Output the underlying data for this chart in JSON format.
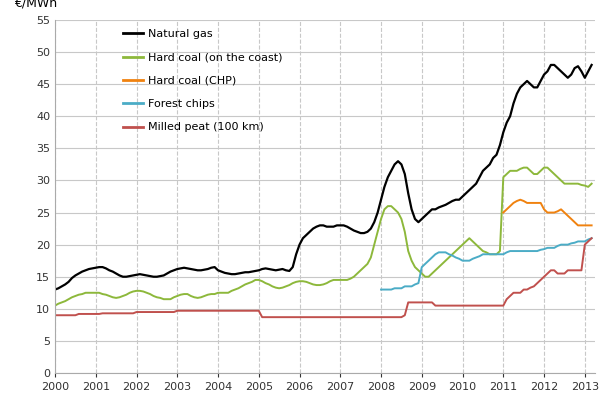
{
  "ylabel": "€/MWh",
  "ylim": [
    0,
    55
  ],
  "yticks": [
    0,
    5,
    10,
    15,
    20,
    25,
    30,
    35,
    40,
    45,
    50,
    55
  ],
  "xlim_start": 2000.0,
  "xlim_end": 2013.25,
  "xtick_labels": [
    "2000",
    "2001",
    "2002",
    "2003",
    "2004",
    "2005",
    "2006",
    "2007",
    "2008",
    "2009",
    "2010",
    "2011",
    "2012",
    "2013"
  ],
  "background_color": "#ffffff",
  "grid_color": "#c8c8c8",
  "series": [
    {
      "label": "Natural gas",
      "color": "#000000",
      "linewidth": 1.6,
      "data_x": [
        2000.0,
        2000.083,
        2000.167,
        2000.25,
        2000.333,
        2000.417,
        2000.5,
        2000.583,
        2000.667,
        2000.75,
        2000.833,
        2000.917,
        2001.0,
        2001.083,
        2001.167,
        2001.25,
        2001.333,
        2001.417,
        2001.5,
        2001.583,
        2001.667,
        2001.75,
        2001.833,
        2001.917,
        2002.0,
        2002.083,
        2002.167,
        2002.25,
        2002.333,
        2002.417,
        2002.5,
        2002.583,
        2002.667,
        2002.75,
        2002.833,
        2002.917,
        2003.0,
        2003.083,
        2003.167,
        2003.25,
        2003.333,
        2003.417,
        2003.5,
        2003.583,
        2003.667,
        2003.75,
        2003.833,
        2003.917,
        2004.0,
        2004.083,
        2004.167,
        2004.25,
        2004.333,
        2004.417,
        2004.5,
        2004.583,
        2004.667,
        2004.75,
        2004.833,
        2004.917,
        2005.0,
        2005.083,
        2005.167,
        2005.25,
        2005.333,
        2005.417,
        2005.5,
        2005.583,
        2005.667,
        2005.75,
        2005.833,
        2005.917,
        2006.0,
        2006.083,
        2006.167,
        2006.25,
        2006.333,
        2006.417,
        2006.5,
        2006.583,
        2006.667,
        2006.75,
        2006.833,
        2006.917,
        2007.0,
        2007.083,
        2007.167,
        2007.25,
        2007.333,
        2007.417,
        2007.5,
        2007.583,
        2007.667,
        2007.75,
        2007.833,
        2007.917,
        2008.0,
        2008.083,
        2008.167,
        2008.25,
        2008.333,
        2008.417,
        2008.5,
        2008.583,
        2008.667,
        2008.75,
        2008.833,
        2008.917,
        2009.0,
        2009.083,
        2009.167,
        2009.25,
        2009.333,
        2009.417,
        2009.5,
        2009.583,
        2009.667,
        2009.75,
        2009.833,
        2009.917,
        2010.0,
        2010.083,
        2010.167,
        2010.25,
        2010.333,
        2010.417,
        2010.5,
        2010.583,
        2010.667,
        2010.75,
        2010.833,
        2010.917,
        2011.0,
        2011.083,
        2011.167,
        2011.25,
        2011.333,
        2011.417,
        2011.5,
        2011.583,
        2011.667,
        2011.75,
        2011.833,
        2011.917,
        2012.0,
        2012.083,
        2012.167,
        2012.25,
        2012.333,
        2012.417,
        2012.5,
        2012.583,
        2012.667,
        2012.75,
        2012.833,
        2012.917,
        2013.0,
        2013.083,
        2013.167
      ],
      "data_y": [
        13.0,
        13.2,
        13.5,
        13.8,
        14.2,
        14.8,
        15.2,
        15.5,
        15.8,
        16.0,
        16.2,
        16.3,
        16.4,
        16.5,
        16.5,
        16.3,
        16.0,
        15.8,
        15.5,
        15.2,
        15.0,
        15.0,
        15.1,
        15.2,
        15.3,
        15.4,
        15.3,
        15.2,
        15.1,
        15.0,
        15.0,
        15.1,
        15.2,
        15.5,
        15.8,
        16.0,
        16.2,
        16.3,
        16.4,
        16.3,
        16.2,
        16.1,
        16.0,
        16.0,
        16.1,
        16.2,
        16.4,
        16.5,
        16.0,
        15.8,
        15.6,
        15.5,
        15.4,
        15.4,
        15.5,
        15.6,
        15.7,
        15.7,
        15.8,
        15.9,
        16.0,
        16.2,
        16.3,
        16.2,
        16.1,
        16.0,
        16.1,
        16.2,
        16.0,
        15.9,
        16.5,
        18.5,
        20.0,
        21.0,
        21.5,
        22.0,
        22.5,
        22.8,
        23.0,
        23.0,
        22.8,
        22.8,
        22.8,
        23.0,
        23.0,
        23.0,
        22.8,
        22.5,
        22.2,
        22.0,
        21.8,
        21.8,
        22.0,
        22.5,
        23.5,
        25.0,
        27.0,
        29.0,
        30.5,
        31.5,
        32.5,
        33.0,
        32.5,
        31.0,
        28.0,
        25.5,
        24.0,
        23.5,
        24.0,
        24.5,
        25.0,
        25.5,
        25.5,
        25.8,
        26.0,
        26.2,
        26.5,
        26.8,
        27.0,
        27.0,
        27.5,
        28.0,
        28.5,
        29.0,
        29.5,
        30.5,
        31.5,
        32.0,
        32.5,
        33.5,
        34.0,
        35.5,
        37.5,
        39.0,
        40.0,
        42.0,
        43.5,
        44.5,
        45.0,
        45.5,
        45.0,
        44.5,
        44.5,
        45.5,
        46.5,
        47.0,
        48.0,
        48.0,
        47.5,
        47.0,
        46.5,
        46.0,
        46.5,
        47.5,
        47.8,
        47.0,
        46.0,
        47.0,
        48.0
      ]
    },
    {
      "label": "Hard coal (on the coast)",
      "color": "#8db83b",
      "linewidth": 1.4,
      "data_x": [
        2000.0,
        2000.083,
        2000.167,
        2000.25,
        2000.333,
        2000.417,
        2000.5,
        2000.583,
        2000.667,
        2000.75,
        2000.833,
        2000.917,
        2001.0,
        2001.083,
        2001.167,
        2001.25,
        2001.333,
        2001.417,
        2001.5,
        2001.583,
        2001.667,
        2001.75,
        2001.833,
        2001.917,
        2002.0,
        2002.083,
        2002.167,
        2002.25,
        2002.333,
        2002.417,
        2002.5,
        2002.583,
        2002.667,
        2002.75,
        2002.833,
        2002.917,
        2003.0,
        2003.083,
        2003.167,
        2003.25,
        2003.333,
        2003.417,
        2003.5,
        2003.583,
        2003.667,
        2003.75,
        2003.833,
        2003.917,
        2004.0,
        2004.083,
        2004.167,
        2004.25,
        2004.333,
        2004.417,
        2004.5,
        2004.583,
        2004.667,
        2004.75,
        2004.833,
        2004.917,
        2005.0,
        2005.083,
        2005.167,
        2005.25,
        2005.333,
        2005.417,
        2005.5,
        2005.583,
        2005.667,
        2005.75,
        2005.833,
        2005.917,
        2006.0,
        2006.083,
        2006.167,
        2006.25,
        2006.333,
        2006.417,
        2006.5,
        2006.583,
        2006.667,
        2006.75,
        2006.833,
        2006.917,
        2007.0,
        2007.083,
        2007.167,
        2007.25,
        2007.333,
        2007.417,
        2007.5,
        2007.583,
        2007.667,
        2007.75,
        2007.833,
        2007.917,
        2008.0,
        2008.083,
        2008.167,
        2008.25,
        2008.333,
        2008.417,
        2008.5,
        2008.583,
        2008.667,
        2008.75,
        2008.833,
        2008.917,
        2009.0,
        2009.083,
        2009.167,
        2009.25,
        2009.333,
        2009.417,
        2009.5,
        2009.583,
        2009.667,
        2009.75,
        2009.833,
        2009.917,
        2010.0,
        2010.083,
        2010.167,
        2010.25,
        2010.333,
        2010.417,
        2010.5,
        2010.583,
        2010.667,
        2010.75,
        2010.833,
        2010.917,
        2011.0,
        2011.083,
        2011.167,
        2011.25,
        2011.333,
        2011.417,
        2011.5,
        2011.583,
        2011.667,
        2011.75,
        2011.833,
        2011.917,
        2012.0,
        2012.083,
        2012.167,
        2012.25,
        2012.333,
        2012.417,
        2012.5,
        2012.583,
        2012.667,
        2012.75,
        2012.833,
        2012.917,
        2013.0,
        2013.083,
        2013.167
      ],
      "data_y": [
        10.5,
        10.8,
        11.0,
        11.2,
        11.5,
        11.8,
        12.0,
        12.2,
        12.3,
        12.5,
        12.5,
        12.5,
        12.5,
        12.5,
        12.3,
        12.2,
        12.0,
        11.8,
        11.7,
        11.8,
        12.0,
        12.2,
        12.5,
        12.7,
        12.8,
        12.8,
        12.7,
        12.5,
        12.3,
        12.0,
        11.8,
        11.7,
        11.5,
        11.5,
        11.5,
        11.8,
        12.0,
        12.2,
        12.3,
        12.3,
        12.0,
        11.8,
        11.7,
        11.8,
        12.0,
        12.2,
        12.3,
        12.3,
        12.5,
        12.5,
        12.5,
        12.5,
        12.8,
        13.0,
        13.2,
        13.5,
        13.8,
        14.0,
        14.2,
        14.5,
        14.5,
        14.3,
        14.0,
        13.8,
        13.5,
        13.3,
        13.2,
        13.3,
        13.5,
        13.7,
        14.0,
        14.2,
        14.3,
        14.3,
        14.2,
        14.0,
        13.8,
        13.7,
        13.7,
        13.8,
        14.0,
        14.3,
        14.5,
        14.5,
        14.5,
        14.5,
        14.5,
        14.7,
        15.0,
        15.5,
        16.0,
        16.5,
        17.0,
        18.0,
        20.0,
        22.0,
        24.0,
        25.5,
        26.0,
        26.0,
        25.5,
        25.0,
        24.0,
        22.0,
        19.0,
        17.5,
        16.5,
        16.0,
        15.5,
        15.0,
        15.0,
        15.5,
        16.0,
        16.5,
        17.0,
        17.5,
        18.0,
        18.5,
        19.0,
        19.5,
        20.0,
        20.5,
        21.0,
        20.5,
        20.0,
        19.5,
        19.0,
        18.8,
        18.5,
        18.5,
        18.5,
        19.0,
        30.5,
        31.0,
        31.5,
        31.5,
        31.5,
        31.8,
        32.0,
        32.0,
        31.5,
        31.0,
        31.0,
        31.5,
        32.0,
        32.0,
        31.5,
        31.0,
        30.5,
        30.0,
        29.5,
        29.5,
        29.5,
        29.5,
        29.5,
        29.3,
        29.2,
        29.0,
        29.5
      ]
    },
    {
      "label": "Hard coal (CHP)",
      "color": "#f0820f",
      "linewidth": 1.4,
      "data_x": [
        2011.0,
        2011.083,
        2011.167,
        2011.25,
        2011.333,
        2011.417,
        2011.5,
        2011.583,
        2011.667,
        2011.75,
        2011.833,
        2011.917,
        2012.0,
        2012.083,
        2012.167,
        2012.25,
        2012.333,
        2012.417,
        2012.5,
        2012.583,
        2012.667,
        2012.75,
        2012.833,
        2012.917,
        2013.0,
        2013.083,
        2013.167
      ],
      "data_y": [
        25.0,
        25.5,
        26.0,
        26.5,
        26.8,
        27.0,
        26.8,
        26.5,
        26.5,
        26.5,
        26.5,
        26.5,
        25.5,
        25.0,
        25.0,
        25.0,
        25.2,
        25.5,
        25.0,
        24.5,
        24.0,
        23.5,
        23.0,
        23.0,
        23.0,
        23.0,
        23.0
      ]
    },
    {
      "label": "Forest chips",
      "color": "#4bacc6",
      "linewidth": 1.4,
      "data_x": [
        2008.0,
        2008.083,
        2008.167,
        2008.25,
        2008.333,
        2008.417,
        2008.5,
        2008.583,
        2008.667,
        2008.75,
        2008.833,
        2008.917,
        2009.0,
        2009.083,
        2009.167,
        2009.25,
        2009.333,
        2009.417,
        2009.5,
        2009.583,
        2009.667,
        2009.75,
        2009.833,
        2009.917,
        2010.0,
        2010.083,
        2010.167,
        2010.25,
        2010.333,
        2010.417,
        2010.5,
        2010.583,
        2010.667,
        2010.75,
        2010.833,
        2010.917,
        2011.0,
        2011.083,
        2011.167,
        2011.25,
        2011.333,
        2011.417,
        2011.5,
        2011.583,
        2011.667,
        2011.75,
        2011.833,
        2011.917,
        2012.0,
        2012.083,
        2012.167,
        2012.25,
        2012.333,
        2012.417,
        2012.5,
        2012.583,
        2012.667,
        2012.75,
        2012.833,
        2012.917,
        2013.0,
        2013.083,
        2013.167
      ],
      "data_y": [
        13.0,
        13.0,
        13.0,
        13.0,
        13.2,
        13.2,
        13.2,
        13.5,
        13.5,
        13.5,
        13.8,
        14.0,
        16.5,
        17.0,
        17.5,
        18.0,
        18.5,
        18.8,
        18.8,
        18.8,
        18.5,
        18.3,
        18.0,
        17.8,
        17.5,
        17.5,
        17.5,
        17.8,
        18.0,
        18.2,
        18.5,
        18.5,
        18.5,
        18.5,
        18.5,
        18.5,
        18.5,
        18.8,
        19.0,
        19.0,
        19.0,
        19.0,
        19.0,
        19.0,
        19.0,
        19.0,
        19.0,
        19.2,
        19.3,
        19.5,
        19.5,
        19.5,
        19.8,
        20.0,
        20.0,
        20.0,
        20.2,
        20.3,
        20.5,
        20.5,
        20.5,
        20.8,
        21.0
      ]
    },
    {
      "label": "Milled peat (100 km)",
      "color": "#c0504d",
      "linewidth": 1.4,
      "data_x": [
        2000.0,
        2000.083,
        2000.167,
        2000.25,
        2000.333,
        2000.417,
        2000.5,
        2000.583,
        2000.667,
        2000.75,
        2000.833,
        2000.917,
        2001.0,
        2001.083,
        2001.167,
        2001.25,
        2001.333,
        2001.417,
        2001.5,
        2001.583,
        2001.667,
        2001.75,
        2001.833,
        2001.917,
        2002.0,
        2002.083,
        2002.167,
        2002.25,
        2002.333,
        2002.417,
        2002.5,
        2002.583,
        2002.667,
        2002.75,
        2002.833,
        2002.917,
        2003.0,
        2003.083,
        2003.167,
        2003.25,
        2003.333,
        2003.417,
        2003.5,
        2003.583,
        2003.667,
        2003.75,
        2003.833,
        2003.917,
        2004.0,
        2004.083,
        2004.167,
        2004.25,
        2004.333,
        2004.417,
        2004.5,
        2004.583,
        2004.667,
        2004.75,
        2004.833,
        2004.917,
        2005.0,
        2005.083,
        2005.167,
        2005.25,
        2005.333,
        2005.417,
        2005.5,
        2005.583,
        2005.667,
        2005.75,
        2005.833,
        2005.917,
        2006.0,
        2006.083,
        2006.167,
        2006.25,
        2006.333,
        2006.417,
        2006.5,
        2006.583,
        2006.667,
        2006.75,
        2006.833,
        2006.917,
        2007.0,
        2007.083,
        2007.167,
        2007.25,
        2007.333,
        2007.417,
        2007.5,
        2007.583,
        2007.667,
        2007.75,
        2007.833,
        2007.917,
        2008.0,
        2008.083,
        2008.167,
        2008.25,
        2008.333,
        2008.417,
        2008.5,
        2008.583,
        2008.667,
        2008.75,
        2008.833,
        2008.917,
        2009.0,
        2009.083,
        2009.167,
        2009.25,
        2009.333,
        2009.417,
        2009.5,
        2009.583,
        2009.667,
        2009.75,
        2009.833,
        2009.917,
        2010.0,
        2010.083,
        2010.167,
        2010.25,
        2010.333,
        2010.417,
        2010.5,
        2010.583,
        2010.667,
        2010.75,
        2010.833,
        2010.917,
        2011.0,
        2011.083,
        2011.167,
        2011.25,
        2011.333,
        2011.417,
        2011.5,
        2011.583,
        2011.667,
        2011.75,
        2011.833,
        2011.917,
        2012.0,
        2012.083,
        2012.167,
        2012.25,
        2012.333,
        2012.417,
        2012.5,
        2012.583,
        2012.667,
        2012.75,
        2012.833,
        2012.917,
        2013.0,
        2013.083,
        2013.167
      ],
      "data_y": [
        9.0,
        9.0,
        9.0,
        9.0,
        9.0,
        9.0,
        9.0,
        9.2,
        9.2,
        9.2,
        9.2,
        9.2,
        9.2,
        9.2,
        9.3,
        9.3,
        9.3,
        9.3,
        9.3,
        9.3,
        9.3,
        9.3,
        9.3,
        9.3,
        9.5,
        9.5,
        9.5,
        9.5,
        9.5,
        9.5,
        9.5,
        9.5,
        9.5,
        9.5,
        9.5,
        9.5,
        9.7,
        9.7,
        9.7,
        9.7,
        9.7,
        9.7,
        9.7,
        9.7,
        9.7,
        9.7,
        9.7,
        9.7,
        9.7,
        9.7,
        9.7,
        9.7,
        9.7,
        9.7,
        9.7,
        9.7,
        9.7,
        9.7,
        9.7,
        9.7,
        9.7,
        8.7,
        8.7,
        8.7,
        8.7,
        8.7,
        8.7,
        8.7,
        8.7,
        8.7,
        8.7,
        8.7,
        8.7,
        8.7,
        8.7,
        8.7,
        8.7,
        8.7,
        8.7,
        8.7,
        8.7,
        8.7,
        8.7,
        8.7,
        8.7,
        8.7,
        8.7,
        8.7,
        8.7,
        8.7,
        8.7,
        8.7,
        8.7,
        8.7,
        8.7,
        8.7,
        8.7,
        8.7,
        8.7,
        8.7,
        8.7,
        8.7,
        8.7,
        9.0,
        11.0,
        11.0,
        11.0,
        11.0,
        11.0,
        11.0,
        11.0,
        11.0,
        10.5,
        10.5,
        10.5,
        10.5,
        10.5,
        10.5,
        10.5,
        10.5,
        10.5,
        10.5,
        10.5,
        10.5,
        10.5,
        10.5,
        10.5,
        10.5,
        10.5,
        10.5,
        10.5,
        10.5,
        10.5,
        11.5,
        12.0,
        12.5,
        12.5,
        12.5,
        13.0,
        13.0,
        13.3,
        13.5,
        14.0,
        14.5,
        15.0,
        15.5,
        16.0,
        16.0,
        15.5,
        15.5,
        15.5,
        16.0,
        16.0,
        16.0,
        16.0,
        16.0,
        20.0,
        20.5,
        21.0
      ]
    }
  ],
  "legend_entries": [
    {
      "label": "Natural gas",
      "color": "#000000"
    },
    {
      "label": "Hard coal (on the coast)",
      "color": "#8db83b"
    },
    {
      "label": "Hard coal (CHP)",
      "color": "#f0820f"
    },
    {
      "label": "Forest chips",
      "color": "#4bacc6"
    },
    {
      "label": "Milled peat (100 km)",
      "color": "#c0504d"
    }
  ]
}
